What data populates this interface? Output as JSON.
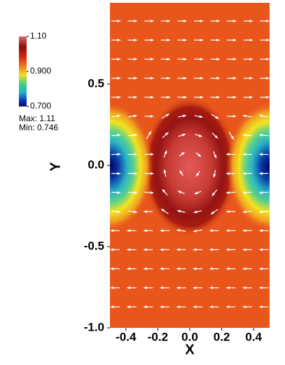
{
  "chart_data": {
    "type": "vector-field",
    "xlabel": "X",
    "ylabel": "Y",
    "xlim": [
      -0.5,
      0.5
    ],
    "ylim": [
      -1,
      1
    ],
    "xticks": [
      -0.4,
      -0.2,
      {
        "value": 0,
        "label": "0.0"
      },
      0.2,
      0.4
    ],
    "yticks": [
      {
        "value": -1,
        "label": "-1.0"
      },
      {
        "value": -0.5,
        "label": "-0.5"
      },
      {
        "value": 0,
        "label": "0.0"
      },
      0.5
    ],
    "colorbar": {
      "lim": [
        0.7,
        1.1
      ],
      "ticks": [
        {
          "value": 1.1,
          "label": "1.10"
        },
        {
          "value": 0.9,
          "label": "0.900"
        },
        {
          "value": 0.7,
          "label": "0.700"
        }
      ],
      "max_label": "Max:",
      "max": 1.11,
      "min_label": "Min:",
      "min": 0.746
    }
  }
}
